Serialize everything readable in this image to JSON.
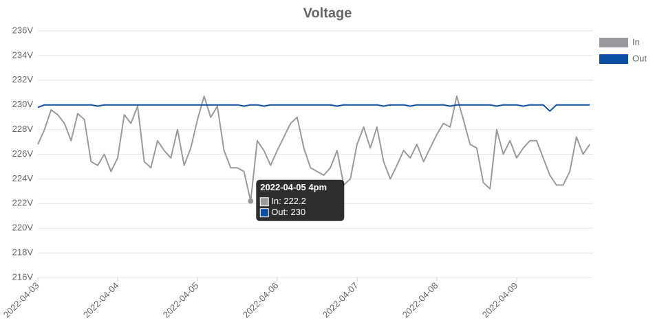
{
  "chart_data": {
    "type": "line",
    "title": "Voltage",
    "x": [
      "2022-04-03 00:00",
      "2022-04-03 02:00",
      "2022-04-03 04:00",
      "2022-04-03 06:00",
      "2022-04-03 08:00",
      "2022-04-03 10:00",
      "2022-04-03 12:00",
      "2022-04-03 14:00",
      "2022-04-03 16:00",
      "2022-04-03 18:00",
      "2022-04-03 20:00",
      "2022-04-03 22:00",
      "2022-04-04 00:00",
      "2022-04-04 02:00",
      "2022-04-04 04:00",
      "2022-04-04 06:00",
      "2022-04-04 08:00",
      "2022-04-04 10:00",
      "2022-04-04 12:00",
      "2022-04-04 14:00",
      "2022-04-04 16:00",
      "2022-04-04 18:00",
      "2022-04-04 20:00",
      "2022-04-04 22:00",
      "2022-04-05 00:00",
      "2022-04-05 02:00",
      "2022-04-05 04:00",
      "2022-04-05 06:00",
      "2022-04-05 08:00",
      "2022-04-05 10:00",
      "2022-04-05 12:00",
      "2022-04-05 14:00",
      "2022-04-05 16:00",
      "2022-04-05 18:00",
      "2022-04-05 20:00",
      "2022-04-05 22:00",
      "2022-04-06 00:00",
      "2022-04-06 02:00",
      "2022-04-06 04:00",
      "2022-04-06 06:00",
      "2022-04-06 08:00",
      "2022-04-06 10:00",
      "2022-04-06 12:00",
      "2022-04-06 14:00",
      "2022-04-06 16:00",
      "2022-04-06 18:00",
      "2022-04-06 20:00",
      "2022-04-06 22:00",
      "2022-04-07 00:00",
      "2022-04-07 02:00",
      "2022-04-07 04:00",
      "2022-04-07 06:00",
      "2022-04-07 08:00",
      "2022-04-07 10:00",
      "2022-04-07 12:00",
      "2022-04-07 14:00",
      "2022-04-07 16:00",
      "2022-04-07 18:00",
      "2022-04-07 20:00",
      "2022-04-07 22:00",
      "2022-04-08 00:00",
      "2022-04-08 02:00",
      "2022-04-08 04:00",
      "2022-04-08 06:00",
      "2022-04-08 08:00",
      "2022-04-08 10:00",
      "2022-04-08 12:00",
      "2022-04-08 14:00",
      "2022-04-08 16:00",
      "2022-04-08 18:00",
      "2022-04-08 20:00",
      "2022-04-08 22:00",
      "2022-04-09 00:00",
      "2022-04-09 02:00",
      "2022-04-09 04:00",
      "2022-04-09 06:00",
      "2022-04-09 08:00",
      "2022-04-09 10:00",
      "2022-04-09 12:00",
      "2022-04-09 14:00",
      "2022-04-09 16:00",
      "2022-04-09 18:00",
      "2022-04-09 20:00",
      "2022-04-09 22:00"
    ],
    "series": [
      {
        "name": "In",
        "color": "#9a9a9c",
        "values": [
          226.8,
          228,
          229.6,
          229.2,
          228.5,
          227.1,
          229.3,
          228.8,
          225.4,
          225.1,
          226,
          224.6,
          225.7,
          229.2,
          228.5,
          229.9,
          225.4,
          224.9,
          227.1,
          226.3,
          225.7,
          228,
          225.1,
          226.5,
          228.8,
          230.7,
          229,
          229.9,
          226.3,
          224.9,
          224.9,
          224.6,
          222.2,
          227.1,
          226.3,
          225.1,
          226.3,
          227.4,
          228.5,
          229,
          226.5,
          224.9,
          224.6,
          224.3,
          224.9,
          226.3,
          223.5,
          224,
          226.8,
          228.2,
          226.5,
          228.2,
          225.4,
          224,
          225.1,
          226.3,
          225.7,
          226.8,
          225.4,
          226.5,
          227.6,
          228.5,
          228.2,
          230.7,
          228.8,
          226.8,
          226.5,
          223.7,
          223.2,
          228,
          226,
          227.1,
          225.7,
          226.5,
          227.1,
          227.1,
          225.7,
          224.3,
          223.5,
          223.5,
          224.6,
          227.4,
          226,
          226.8
        ]
      },
      {
        "name": "Out",
        "color": "#0b4ea2",
        "values": [
          229.8,
          230,
          230,
          230,
          230,
          230,
          230,
          230,
          230,
          229.9,
          230,
          230,
          230,
          230,
          230,
          230,
          230,
          230,
          230,
          230,
          230,
          230,
          230,
          230,
          230,
          230,
          230,
          230,
          230,
          230,
          230,
          229.9,
          230,
          230,
          229.9,
          230,
          230,
          230,
          230,
          230,
          230,
          230,
          230,
          230,
          230,
          229.9,
          230,
          230,
          230,
          230,
          230,
          230,
          229.9,
          230,
          230,
          230,
          229.9,
          230,
          230,
          230,
          230,
          230,
          229.9,
          230,
          230,
          230,
          230,
          230,
          230,
          229.9,
          230,
          230,
          230,
          229.9,
          230,
          230,
          230,
          229.5,
          230,
          230,
          230,
          230,
          230,
          230
        ]
      }
    ],
    "xlim": [
      "2022-04-03 00:00",
      "2022-04-09 23:00"
    ],
    "xticks": [
      "2022-04-03",
      "2022-04-04",
      "2022-04-05",
      "2022-04-06",
      "2022-04-07",
      "2022-04-08",
      "2022-04-09"
    ],
    "ylim": [
      216,
      236
    ],
    "yticks": [
      {
        "value": 216,
        "label": "216V"
      },
      {
        "value": 218,
        "label": "218V"
      },
      {
        "value": 220,
        "label": "220V"
      },
      {
        "value": 222,
        "label": "222V"
      },
      {
        "value": 224,
        "label": "224V"
      },
      {
        "value": 226,
        "label": "226V"
      },
      {
        "value": 228,
        "label": "228V"
      },
      {
        "value": 230,
        "label": "230V"
      },
      {
        "value": 232,
        "label": "232V"
      },
      {
        "value": 234,
        "label": "234V"
      },
      {
        "value": 236,
        "label": "236V"
      }
    ],
    "grid": true,
    "legend": "top-right",
    "tooltip": {
      "title": "2022-04-05 4pm",
      "x": "2022-04-05 16:00",
      "value": 222.2,
      "lines": [
        "In: 222.2",
        "Out: 230"
      ]
    }
  }
}
